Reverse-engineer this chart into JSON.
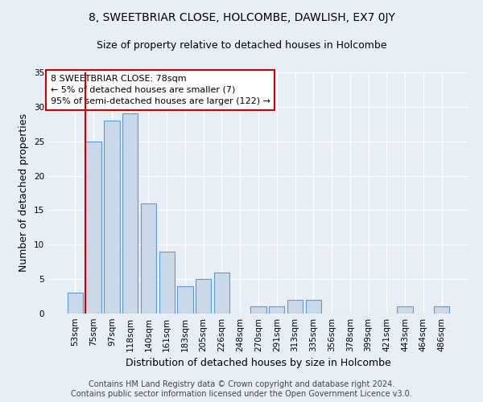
{
  "title": "8, SWEETBRIAR CLOSE, HOLCOMBE, DAWLISH, EX7 0JY",
  "subtitle": "Size of property relative to detached houses in Holcombe",
  "xlabel": "Distribution of detached houses by size in Holcombe",
  "ylabel": "Number of detached properties",
  "bar_labels": [
    "53sqm",
    "75sqm",
    "97sqm",
    "118sqm",
    "140sqm",
    "161sqm",
    "183sqm",
    "205sqm",
    "226sqm",
    "248sqm",
    "270sqm",
    "291sqm",
    "313sqm",
    "335sqm",
    "356sqm",
    "378sqm",
    "399sqm",
    "421sqm",
    "443sqm",
    "464sqm",
    "486sqm"
  ],
  "bar_values": [
    3,
    25,
    28,
    29,
    16,
    9,
    4,
    5,
    6,
    0,
    1,
    1,
    2,
    2,
    0,
    0,
    0,
    0,
    1,
    0,
    1
  ],
  "bar_color": "#c9d9ea",
  "bar_edge_color": "#5b9bd5",
  "vline_bar_index": 1,
  "vline_color": "#cc0000",
  "annotation_text": "8 SWEETBRIAR CLOSE: 78sqm\n← 5% of detached houses are smaller (7)\n95% of semi-detached houses are larger (122) →",
  "annotation_box_color": "#ffffff",
  "annotation_box_edge": "#cc0000",
  "ylim": [
    0,
    35
  ],
  "yticks": [
    0,
    5,
    10,
    15,
    20,
    25,
    30,
    35
  ],
  "footer": "Contains HM Land Registry data © Crown copyright and database right 2024.\nContains public sector information licensed under the Open Government Licence v3.0.",
  "bg_color": "#e8eef5",
  "plot_bg_color": "#e8eef5",
  "grid_color": "#ffffff",
  "title_fontsize": 10,
  "subtitle_fontsize": 9,
  "axis_label_fontsize": 9,
  "tick_fontsize": 7.5,
  "footer_fontsize": 7,
  "annotation_fontsize": 8
}
